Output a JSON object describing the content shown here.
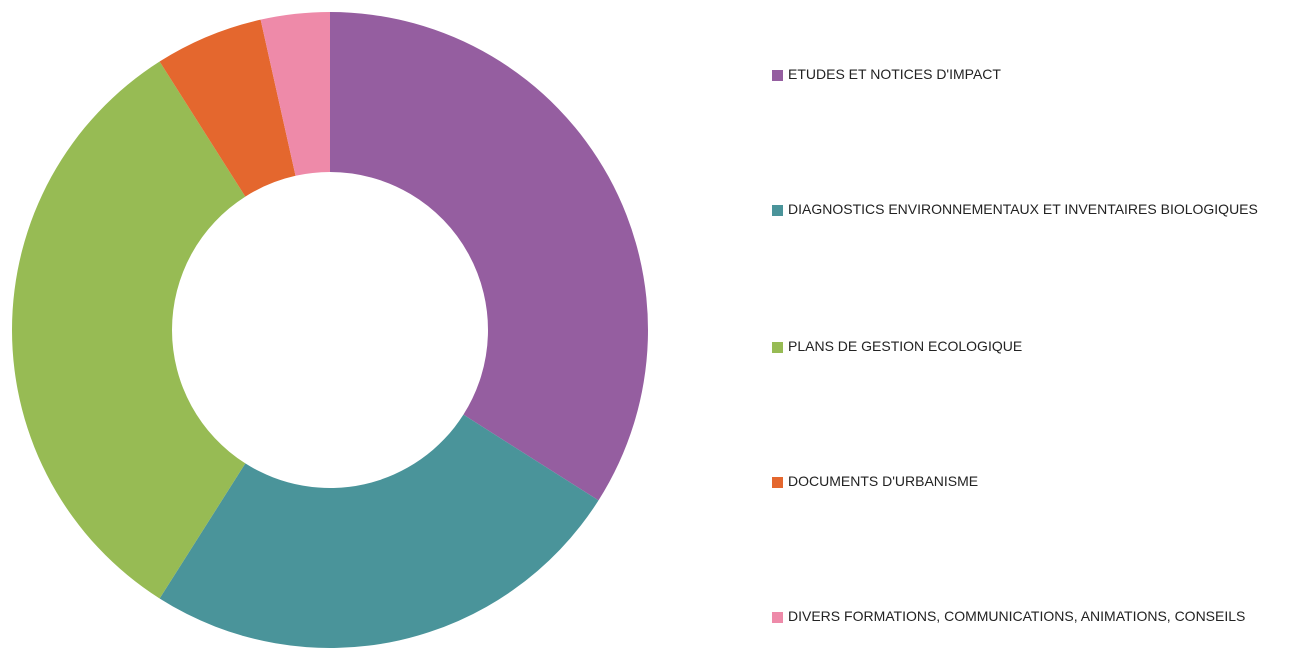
{
  "chart_data": {
    "type": "donut",
    "categories": [
      "ETUDES ET NOTICES D'IMPACT",
      "DIAGNOSTICS ENVIRONNEMENTAUX ET INVENTAIRES BIOLOGIQUES",
      "PLANS DE GESTION ECOLOGIQUE",
      "DOCUMENTS D'URBANISME",
      "DIVERS FORMATIONS, COMMUNICATIONS, ANIMATIONS, CONSEILS"
    ],
    "values": [
      34,
      25,
      32,
      5.5,
      3.5
    ],
    "colors": [
      "#955ea0",
      "#4a949a",
      "#97bb54",
      "#e4672e",
      "#ee8aa9"
    ],
    "legend": "right"
  }
}
